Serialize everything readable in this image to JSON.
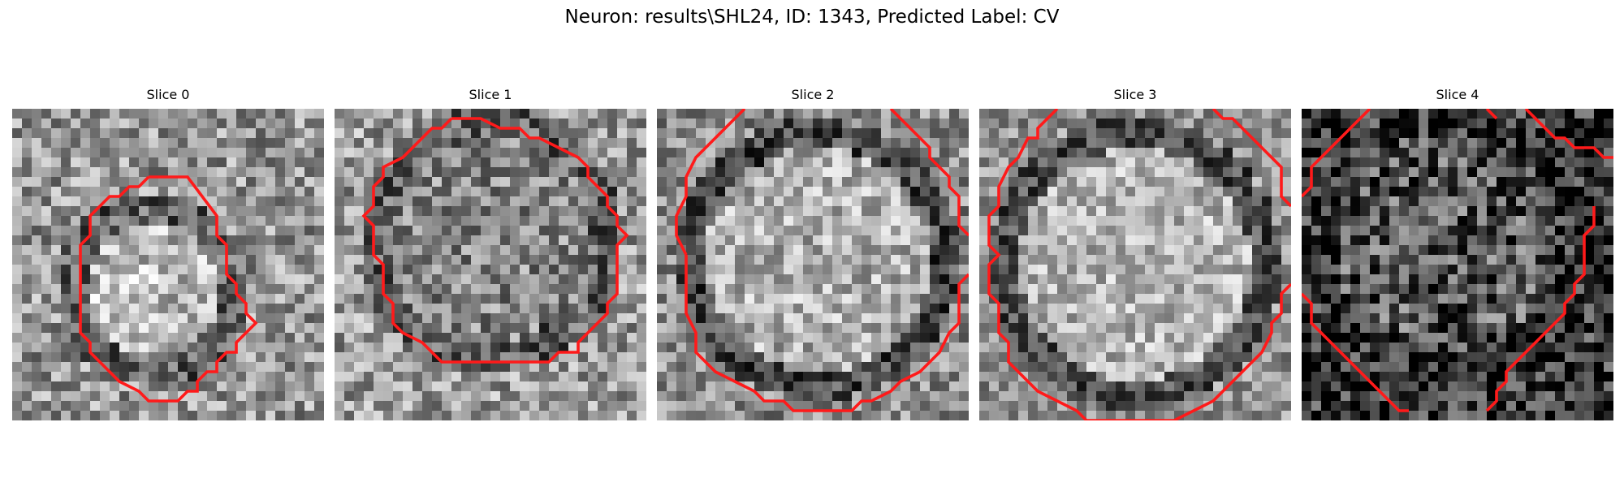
{
  "figure": {
    "title": "Neuron: results\\SHL24, ID: 1343, Predicted Label: CV"
  },
  "colors": {
    "contour": "#ff1a1a",
    "background": "#ffffff"
  },
  "slices": [
    {
      "title": "Slice 0",
      "tone": "mid"
    },
    {
      "title": "Slice 1",
      "tone": "mid"
    },
    {
      "title": "Slice 2",
      "tone": "mid"
    },
    {
      "title": "Slice 3",
      "tone": "mid"
    },
    {
      "title": "Slice 4",
      "tone": "dark"
    }
  ]
}
